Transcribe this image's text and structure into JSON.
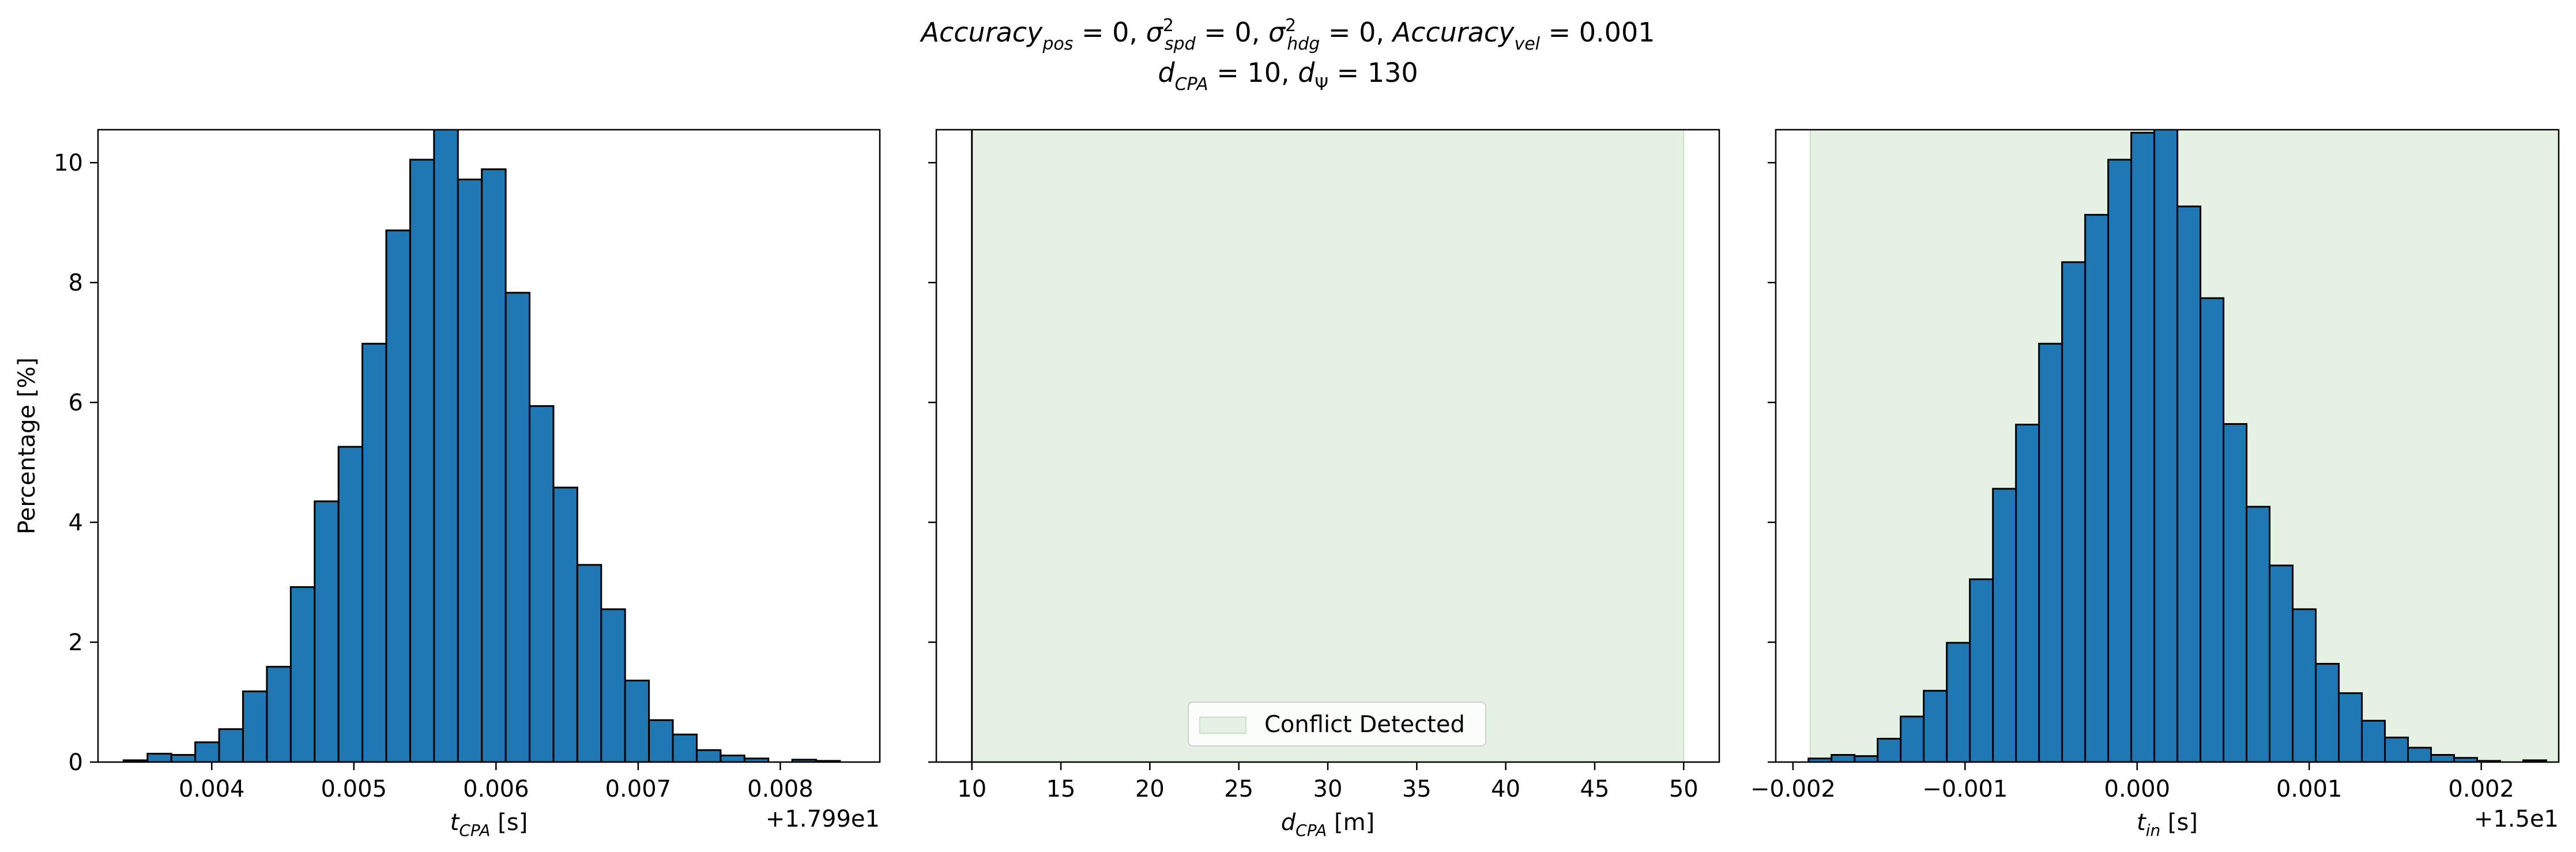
{
  "figure": {
    "title_line1": "Accuracy_pos = 0, σ²_spd = 0, σ²_hdg = 0, Accuracy_vel = 0.001",
    "title_line2": "d_CPA = 10, d_Ψ = 130"
  },
  "colors": {
    "bar_fill": "#1f77b4",
    "bar_edge": "#000000",
    "conflict_fill": "#e5f1e3",
    "conflict_edge": "#c8e0c4",
    "axis": "#000000"
  },
  "chart_data": [
    {
      "type": "bar",
      "subtype": "histogram",
      "ylabel": "Percentage [%]",
      "xlabel_main": "t",
      "xlabel_sub": "CPA",
      "xlabel_unit": " [s]",
      "offset_text": "+1.799e1",
      "xlim": [
        0.0032,
        0.0087
      ],
      "ylim": [
        0,
        10.55
      ],
      "xticks": [
        0.004,
        0.005,
        0.006,
        0.007,
        0.008
      ],
      "xtick_labels": [
        "0.004",
        "0.005",
        "0.006",
        "0.007",
        "0.008"
      ],
      "yticks": [
        0,
        2,
        4,
        6,
        8,
        10
      ],
      "ytick_labels": [
        "0",
        "2",
        "4",
        "6",
        "8",
        "10"
      ],
      "bin_start": 0.00338,
      "bin_width": 0.000168,
      "values": [
        0.03,
        0.14,
        0.12,
        0.33,
        0.55,
        1.18,
        1.59,
        2.92,
        4.35,
        5.26,
        6.98,
        8.87,
        10.05,
        10.6,
        9.72,
        9.89,
        7.83,
        5.94,
        4.58,
        3.29,
        2.55,
        1.36,
        0.7,
        0.46,
        0.2,
        0.11,
        0.06,
        0.0,
        0.04,
        0.02
      ],
      "grid": false
    },
    {
      "type": "bar",
      "subtype": "histogram",
      "xlabel_main": "d",
      "xlabel_sub": "CPA",
      "xlabel_unit": " [m]",
      "xlim": [
        8.0,
        52.0
      ],
      "ylim": [
        0,
        10.55
      ],
      "xticks": [
        10,
        15,
        20,
        25,
        30,
        35,
        40,
        45,
        50
      ],
      "xtick_labels": [
        "10",
        "15",
        "20",
        "25",
        "30",
        "35",
        "40",
        "45",
        "50"
      ],
      "yticks": [
        0,
        2,
        4,
        6,
        8,
        10
      ],
      "conflict_region": [
        10,
        50
      ],
      "spike": {
        "x": 10,
        "value": 100
      },
      "legend": {
        "label": "Conflict Detected",
        "position": "lower center"
      },
      "grid": false
    },
    {
      "type": "bar",
      "subtype": "histogram",
      "xlabel_main": "t",
      "xlabel_sub": "in",
      "xlabel_unit": " [s]",
      "offset_text": "+1.5e1",
      "xlim": [
        -0.0021,
        0.00245
      ],
      "ylim": [
        0,
        10.55
      ],
      "xticks": [
        -0.002,
        -0.001,
        0.0,
        0.001,
        0.002
      ],
      "xtick_labels": [
        "−0.002",
        "−0.001",
        "0.000",
        "0.001",
        "0.002"
      ],
      "yticks": [
        0,
        2,
        4,
        6,
        8,
        10
      ],
      "conflict_region": [
        -0.0019,
        0.00245
      ],
      "bin_start": -0.00191,
      "bin_width": 0.000134,
      "values": [
        0.06,
        0.12,
        0.1,
        0.39,
        0.76,
        1.19,
        1.99,
        3.05,
        4.56,
        5.63,
        6.98,
        8.34,
        9.13,
        10.05,
        10.5,
        10.6,
        9.27,
        7.74,
        5.64,
        4.26,
        3.28,
        2.55,
        1.64,
        1.15,
        0.69,
        0.41,
        0.24,
        0.12,
        0.07,
        0.02,
        0.0,
        0.03
      ],
      "grid": false
    }
  ]
}
